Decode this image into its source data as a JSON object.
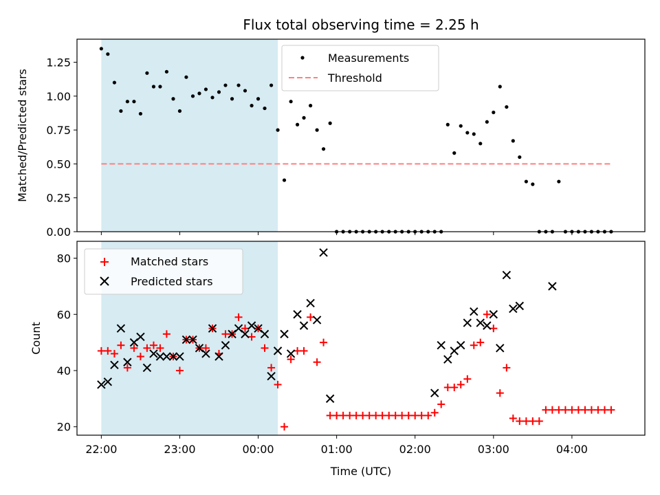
{
  "title": "Flux total observing time = 2.25 h",
  "colors": {
    "shade": "#add8e6",
    "measurement": "#000000",
    "threshold": "#ff7f7f",
    "matched": "#ff0000",
    "predicted": "#000000"
  },
  "chart_data": [
    {
      "type": "scatter",
      "ylabel": "Matched/Predicted stars",
      "ylim": [
        0,
        1.42
      ],
      "yticks": [
        "0.00",
        "0.25",
        "0.50",
        "0.75",
        "1.00",
        "1.25"
      ],
      "xlim": [
        -0.31,
        6.93
      ],
      "shaded_region": [
        0,
        2.25
      ],
      "legend": {
        "position": "upper-center",
        "entries": [
          "Measurements",
          "Threshold"
        ]
      },
      "series": [
        {
          "name": "Measurements",
          "x": [
            0,
            0.083,
            0.167,
            0.25,
            0.333,
            0.417,
            0.5,
            0.583,
            0.667,
            0.75,
            0.833,
            0.917,
            1.0,
            1.083,
            1.167,
            1.25,
            1.333,
            1.417,
            1.5,
            1.583,
            1.667,
            1.75,
            1.833,
            1.917,
            2.0,
            2.083,
            2.167,
            2.25,
            2.333,
            2.417,
            2.5,
            2.583,
            2.667,
            2.75,
            2.833,
            2.917,
            3.0,
            3.083,
            3.167,
            3.25,
            3.333,
            3.417,
            3.5,
            3.583,
            3.667,
            3.75,
            3.833,
            3.917,
            4.0,
            4.083,
            4.167,
            4.25,
            4.333,
            4.417,
            4.5,
            4.583,
            4.667,
            4.75,
            4.833,
            4.917,
            5.0,
            5.083,
            5.167,
            5.25,
            5.333,
            5.417,
            5.5,
            5.583,
            5.667,
            5.75,
            5.833,
            5.917,
            6.0,
            6.083,
            6.167,
            6.25,
            6.333,
            6.417,
            6.5
          ],
          "y": [
            1.35,
            1.31,
            1.1,
            0.89,
            0.96,
            0.96,
            0.87,
            1.17,
            1.07,
            1.07,
            1.18,
            0.98,
            0.89,
            1.14,
            1.0,
            1.02,
            1.05,
            0.99,
            1.03,
            1.08,
            0.98,
            1.08,
            1.04,
            0.93,
            0.98,
            0.91,
            1.08,
            0.75,
            0.38,
            0.96,
            0.79,
            0.84,
            0.93,
            0.75,
            0.61,
            0.8,
            0,
            0,
            0,
            0,
            0,
            0,
            0,
            0,
            0,
            0,
            0,
            0,
            0,
            0,
            0,
            0,
            0,
            0.79,
            0.58,
            0.78,
            0.73,
            0.72,
            0.65,
            0.81,
            0.88,
            1.07,
            0.92,
            0.67,
            0.55,
            0.37,
            0.35,
            0,
            0,
            0,
            0.37,
            0,
            0,
            0,
            0,
            0,
            0,
            0,
            0
          ]
        },
        {
          "name": "Threshold",
          "x": [
            0,
            6.5
          ],
          "y": [
            0.5,
            0.5
          ]
        }
      ]
    },
    {
      "type": "scatter",
      "xlabel": "Time (UTC)",
      "ylabel": "Count",
      "ylim": [
        17,
        86
      ],
      "yticks": [
        "20",
        "40",
        "60",
        "80"
      ],
      "xlim": [
        -0.31,
        6.93
      ],
      "xticks": [
        {
          "v": 0,
          "label": "22:00"
        },
        {
          "v": 1,
          "label": "23:00"
        },
        {
          "v": 2,
          "label": "00:00"
        },
        {
          "v": 3,
          "label": "01:00"
        },
        {
          "v": 4,
          "label": "02:00"
        },
        {
          "v": 5,
          "label": "03:00"
        },
        {
          "v": 6,
          "label": "04:00"
        }
      ],
      "shaded_region": [
        0,
        2.25
      ],
      "legend": {
        "position": "upper-left",
        "entries": [
          "Matched stars",
          "Predicted stars"
        ]
      },
      "series": [
        {
          "name": "Matched stars",
          "x": [
            0,
            0.083,
            0.167,
            0.25,
            0.333,
            0.417,
            0.5,
            0.583,
            0.667,
            0.75,
            0.833,
            0.917,
            1.0,
            1.083,
            1.167,
            1.25,
            1.333,
            1.417,
            1.5,
            1.583,
            1.667,
            1.75,
            1.833,
            1.917,
            2.0,
            2.083,
            2.167,
            2.25,
            2.333,
            2.417,
            2.5,
            2.583,
            2.667,
            2.75,
            2.833,
            2.917,
            3.0,
            3.083,
            3.167,
            3.25,
            3.333,
            3.417,
            3.5,
            3.583,
            3.667,
            3.75,
            3.833,
            3.917,
            4.0,
            4.083,
            4.167,
            4.25,
            4.333,
            4.417,
            4.5,
            4.583,
            4.667,
            4.75,
            4.833,
            4.917,
            5.0,
            5.083,
            5.167,
            5.25,
            5.333,
            5.417,
            5.5,
            5.583,
            5.667,
            5.75,
            5.833,
            5.917,
            6.0,
            6.083,
            6.167,
            6.25,
            6.333,
            6.417,
            6.5
          ],
          "y": [
            47,
            47,
            46,
            49,
            41,
            48,
            45,
            48,
            49,
            48,
            53,
            45,
            40,
            51,
            51,
            48,
            48,
            55,
            46,
            53,
            53,
            59,
            55,
            52,
            55,
            48,
            41,
            35,
            20,
            44,
            47,
            47,
            59,
            43,
            50,
            24,
            24,
            24,
            24,
            24,
            24,
            24,
            24,
            24,
            24,
            24,
            24,
            24,
            24,
            24,
            24,
            25,
            28,
            34,
            34,
            35,
            37,
            49,
            50,
            60,
            55,
            32,
            41,
            23,
            22,
            22,
            22,
            22,
            26,
            26,
            26,
            26,
            26,
            26,
            26,
            26,
            26,
            26,
            26
          ]
        },
        {
          "name": "Predicted stars",
          "x": [
            0,
            0.083,
            0.167,
            0.25,
            0.333,
            0.417,
            0.5,
            0.583,
            0.667,
            0.75,
            0.833,
            0.917,
            1.0,
            1.083,
            1.167,
            1.25,
            1.333,
            1.417,
            1.5,
            1.583,
            1.667,
            1.75,
            1.833,
            1.917,
            2.0,
            2.083,
            2.167,
            2.25,
            2.333,
            2.417,
            2.5,
            2.583,
            2.667,
            2.75,
            2.833,
            2.917,
            4.25,
            4.333,
            4.417,
            4.5,
            4.583,
            4.667,
            4.75,
            4.833,
            4.917,
            5.0,
            5.083,
            5.167,
            5.25,
            5.333,
            5.75
          ],
          "y": [
            35,
            36,
            42,
            55,
            43,
            50,
            52,
            41,
            46,
            45,
            45,
            45,
            45,
            51,
            51,
            48,
            46,
            55,
            45,
            49,
            53,
            55,
            53,
            56,
            55,
            53,
            38,
            47,
            53,
            46,
            60,
            56,
            64,
            58,
            82,
            30,
            32,
            49,
            44,
            47,
            49,
            57,
            61,
            57,
            56,
            60,
            48,
            74,
            62,
            63,
            70
          ]
        }
      ]
    }
  ]
}
